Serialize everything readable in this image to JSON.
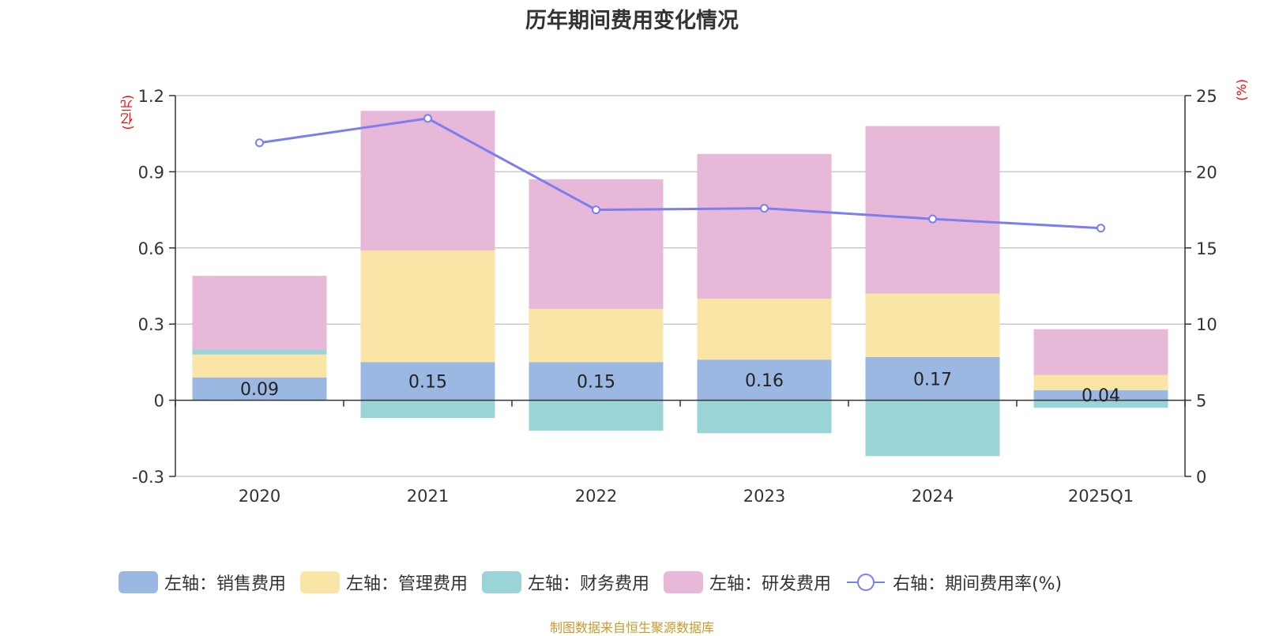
{
  "chart_data": {
    "type": "bar",
    "title": "历年期间费用变化情况",
    "categories": [
      "2020",
      "2021",
      "2022",
      "2023",
      "2024",
      "2025Q1"
    ],
    "left_axis": {
      "unit": "(亿元)",
      "ylim": [
        -0.3,
        1.2
      ],
      "ticks": [
        "-0.3",
        "0",
        "0.3",
        "0.6",
        "0.9",
        "1.2"
      ]
    },
    "right_axis": {
      "unit": "(%)",
      "ylim": [
        0,
        25
      ],
      "ticks": [
        "0",
        "5",
        "10",
        "15",
        "20",
        "25"
      ]
    },
    "grid": true,
    "series": [
      {
        "name": "左轴：销售费用",
        "type": "bar",
        "axis": "left",
        "color": "#9bb8e3",
        "values": [
          0.09,
          0.15,
          0.15,
          0.16,
          0.17,
          0.04
        ],
        "labels": [
          "0.09",
          "0.15",
          "0.15",
          "0.16",
          "0.17",
          "0.04"
        ]
      },
      {
        "name": "左轴：管理费用",
        "type": "bar",
        "axis": "left",
        "color": "#f9e6a7",
        "values": [
          0.09,
          0.44,
          0.21,
          0.24,
          0.25,
          0.06
        ]
      },
      {
        "name": "左轴：财务费用",
        "type": "bar",
        "axis": "left",
        "color": "#9ad4d6",
        "values": [
          0.02,
          -0.07,
          -0.12,
          -0.13,
          -0.22,
          -0.03
        ]
      },
      {
        "name": "左轴：研发费用",
        "type": "bar",
        "axis": "left",
        "color": "#e7b8d8",
        "values": [
          0.29,
          0.55,
          0.51,
          0.57,
          0.66,
          0.18
        ]
      },
      {
        "name": "右轴：期间费用率(%)",
        "type": "line",
        "axis": "right",
        "color": "#7b7ef0",
        "values": [
          21.9,
          23.5,
          17.5,
          17.6,
          16.9,
          16.3
        ]
      }
    ],
    "legend_position": "bottom"
  },
  "source_note": "制图数据来自恒生聚源数据库"
}
